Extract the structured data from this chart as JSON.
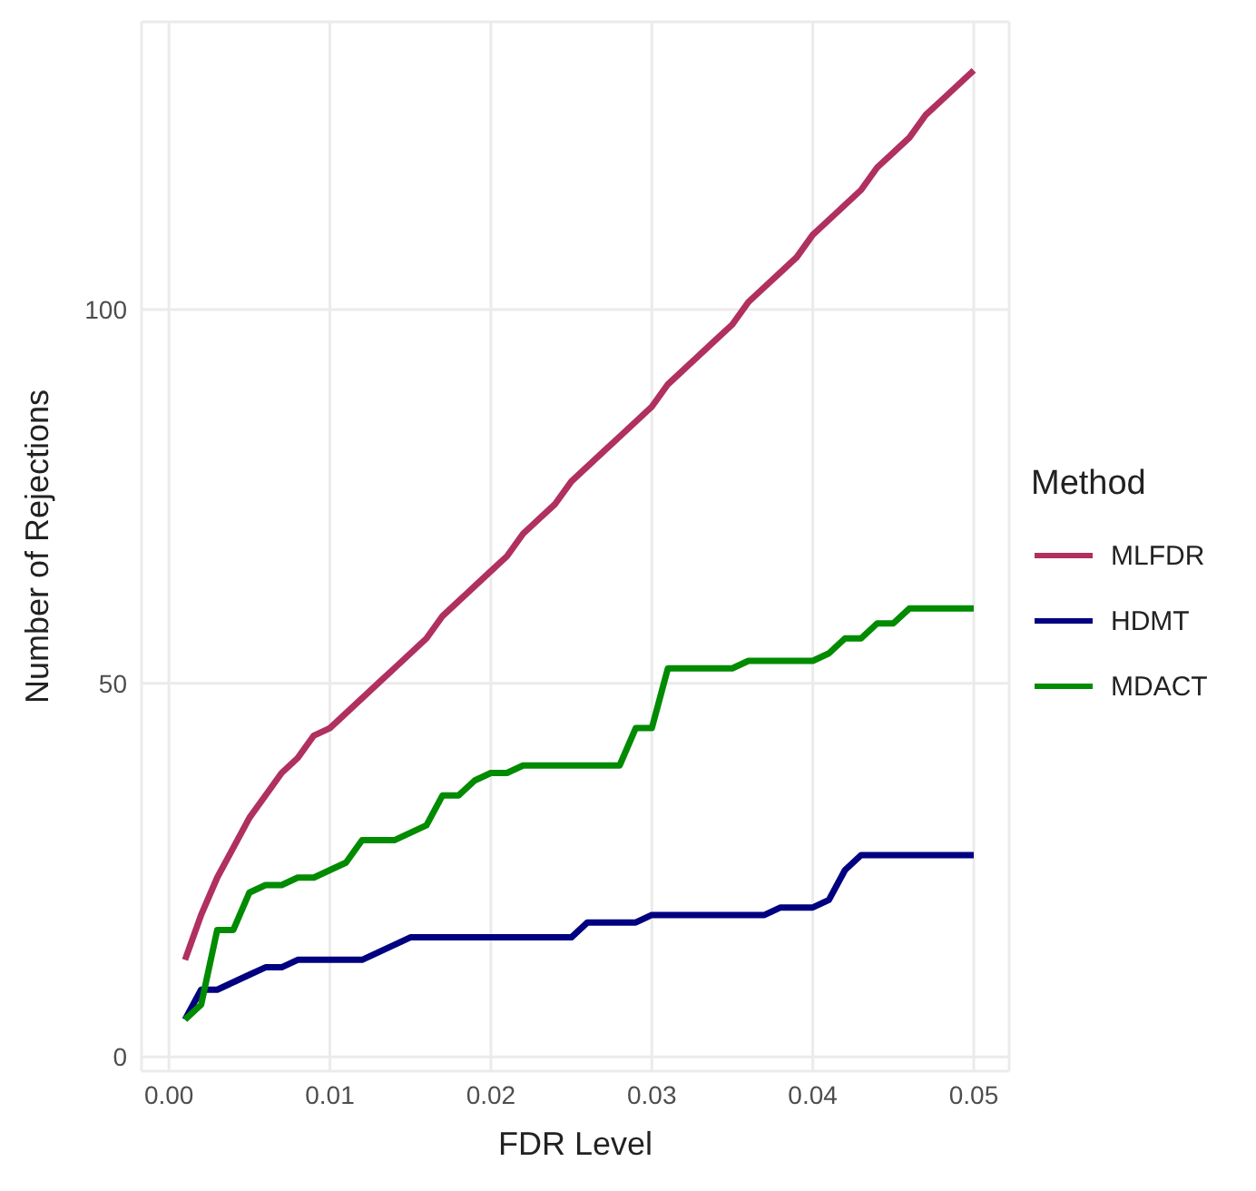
{
  "chart_data": {
    "type": "line",
    "xlabel": "FDR Level",
    "ylabel": "Number of Rejections",
    "legend_title": "Method",
    "legend": "right",
    "grid": true,
    "marker": "none",
    "line_style": "solid",
    "x": [
      0.001,
      0.002,
      0.003,
      0.004,
      0.005,
      0.006,
      0.007,
      0.008,
      0.009,
      0.01,
      0.011,
      0.012,
      0.013,
      0.014,
      0.015,
      0.016,
      0.017,
      0.018,
      0.019,
      0.02,
      0.021,
      0.022,
      0.023,
      0.024,
      0.025,
      0.026,
      0.027,
      0.028,
      0.029,
      0.03,
      0.031,
      0.032,
      0.033,
      0.034,
      0.035,
      0.036,
      0.037,
      0.038,
      0.039,
      0.04,
      0.041,
      0.042,
      0.043,
      0.044,
      0.045,
      0.046,
      0.047,
      0.048,
      0.049,
      0.05
    ],
    "xlim": [
      -0.0017,
      0.0522
    ],
    "xticks": [
      {
        "value": 0,
        "label": "0.00"
      },
      {
        "value": 0.01,
        "label": "0.01"
      },
      {
        "value": 0.02,
        "label": "0.02"
      },
      {
        "value": 0.03,
        "label": "0.03"
      },
      {
        "value": 0.04,
        "label": "0.04"
      },
      {
        "value": 0.05,
        "label": "0.05"
      }
    ],
    "ylim": [
      -1.9,
      138.5
    ],
    "yticks": [
      0,
      50,
      100
    ],
    "series": [
      {
        "name": "MLFDR",
        "color": "#b03060",
        "values": [
          13,
          19,
          24,
          28,
          32,
          35,
          38,
          40,
          43,
          44,
          46,
          48,
          50,
          52,
          54,
          56,
          59,
          61,
          63,
          65,
          67,
          70,
          72,
          74,
          77,
          79,
          81,
          83,
          85,
          87,
          90,
          92,
          94,
          96,
          98,
          101,
          103,
          105,
          107,
          110,
          112,
          114,
          116,
          119,
          121,
          123,
          126,
          128,
          130,
          132
        ]
      },
      {
        "name": "HDMT",
        "color": "#000080",
        "values": [
          5,
          9,
          9,
          10,
          11,
          12,
          12,
          13,
          13,
          13,
          13,
          13,
          14,
          15,
          16,
          16,
          16,
          16,
          16,
          16,
          16,
          16,
          16,
          16,
          16,
          18,
          18,
          18,
          18,
          19,
          19,
          19,
          19,
          19,
          19,
          19,
          19,
          20,
          20,
          20,
          21,
          25,
          27,
          27,
          27,
          27,
          27,
          27,
          27,
          27
        ]
      },
      {
        "name": "MDACT",
        "color": "#008b00",
        "values": [
          5,
          7,
          17,
          17,
          22,
          23,
          23,
          24,
          24,
          25,
          26,
          29,
          29,
          29,
          30,
          31,
          35,
          35,
          37,
          38,
          38,
          39,
          39,
          39,
          39,
          39,
          39,
          39,
          44,
          44,
          52,
          52,
          52,
          52,
          52,
          53,
          53,
          53,
          53,
          53,
          54,
          56,
          56,
          58,
          58,
          60,
          60,
          60,
          60,
          60
        ]
      }
    ]
  }
}
